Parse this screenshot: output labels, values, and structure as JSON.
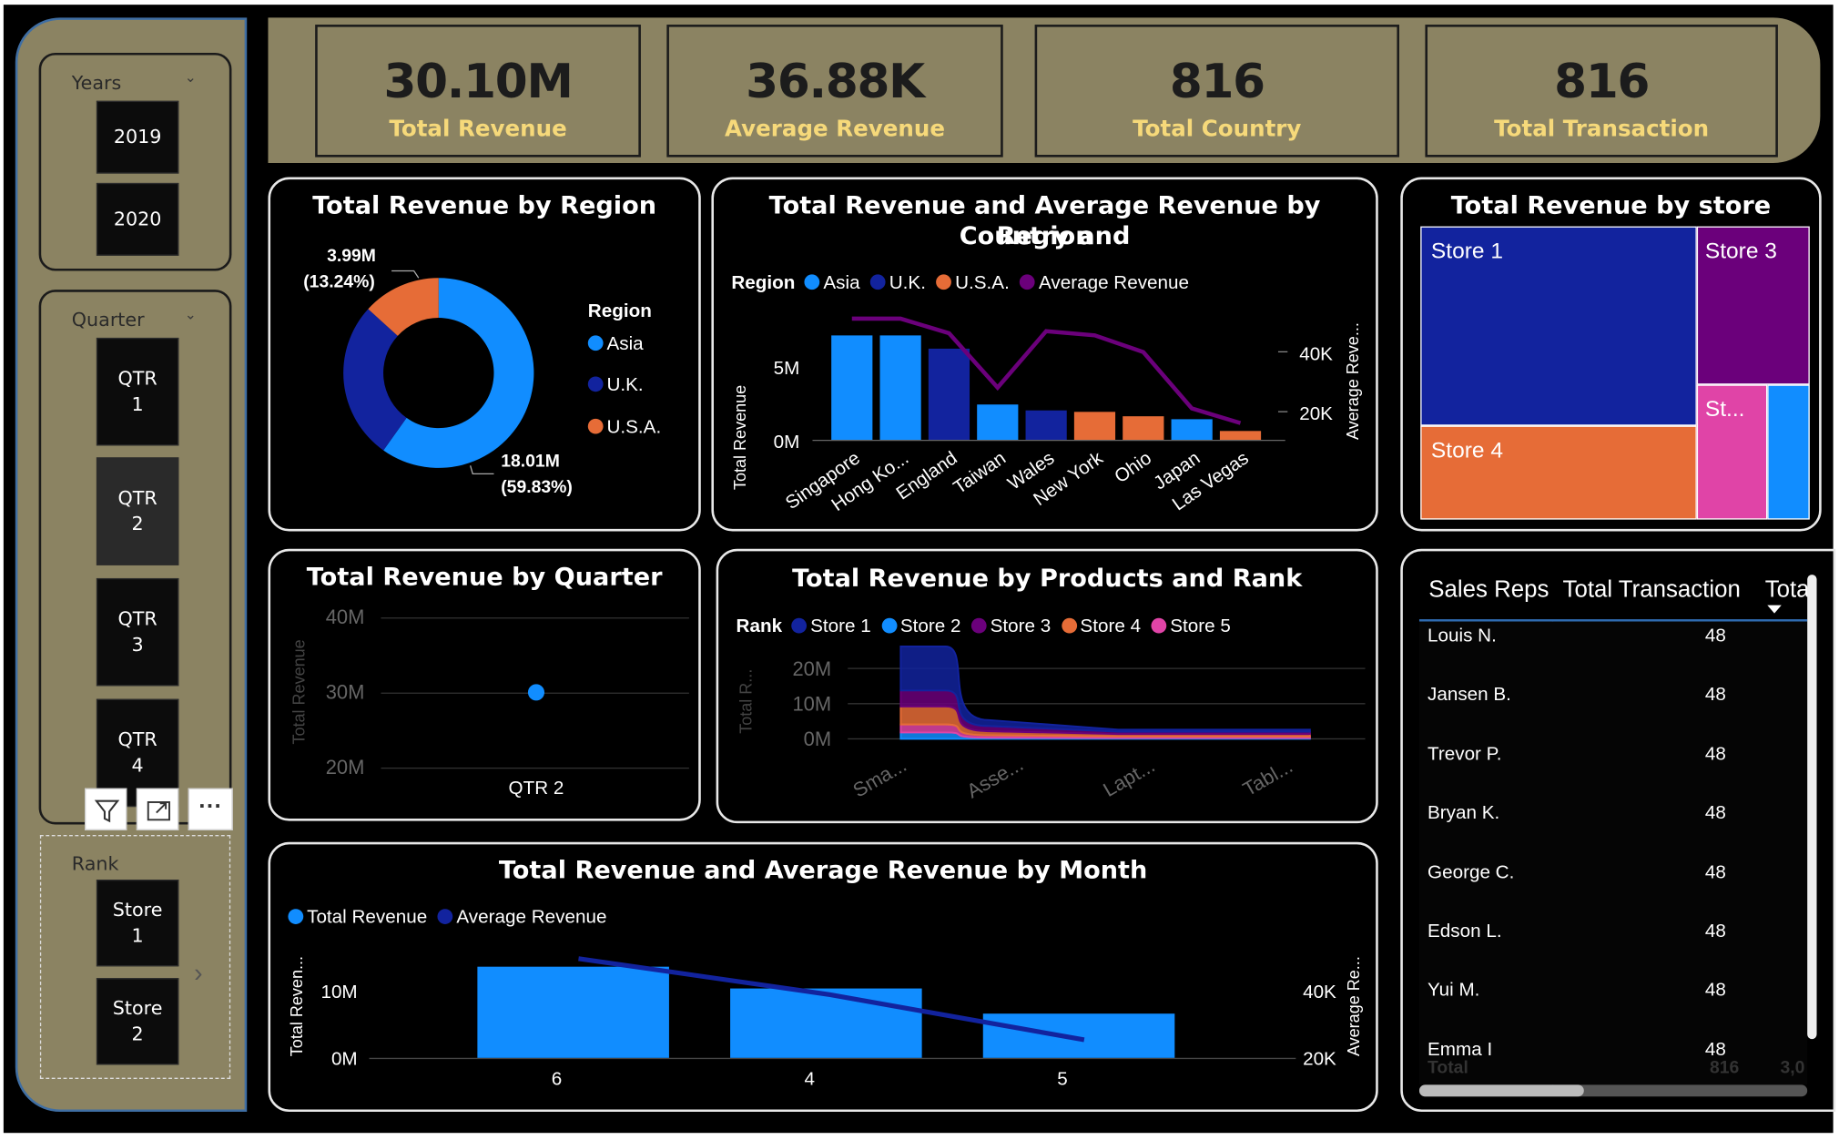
{
  "slicers": {
    "years": {
      "title": "Years",
      "items": [
        "2019",
        "2020"
      ]
    },
    "quarter": {
      "title": "Quarter",
      "items": [
        "QTR\n1",
        "QTR\n2",
        "QTR\n3",
        "QTR\n4"
      ],
      "selected": 1
    },
    "rank": {
      "title": "Rank",
      "items": [
        "Store\n1",
        "Store\n2"
      ]
    }
  },
  "visual_toolbar": [
    "filter-icon",
    "focus-mode-icon",
    "more-options-icon"
  ],
  "kpis": [
    {
      "value": "30.10M",
      "label": "Total Revenue"
    },
    {
      "value": "36.88K",
      "label": "Average Revenue"
    },
    {
      "value": "816",
      "label": "Total Country"
    },
    {
      "value": "816",
      "label": "Total Transaction"
    }
  ],
  "region_card": {
    "title": "Total Revenue by Region",
    "legend_title": "Region",
    "label_small": "3.99M",
    "label_small_pct": "(13.24%)",
    "label_large": "18.01M",
    "label_large_pct": "(59.83%)"
  },
  "country_card": {
    "title_line1": "Total Revenue and Average Revenue by Country and",
    "title_line2": "Region",
    "legend_title": "Region",
    "ylabel_left": "Total Revenue",
    "ylabel_right": "Average Reve...",
    "yticks_left": [
      "5M",
      "0M"
    ],
    "yticks_right": [
      "40K",
      "20K"
    ]
  },
  "store_card": {
    "title": "Total Revenue by store",
    "labels": [
      "Store 1",
      "Store 3",
      "Store 4",
      "St..."
    ]
  },
  "quarter_card": {
    "title": "Total Revenue by Quarter",
    "ylabel": "Total Revenue",
    "yticks": [
      "40M",
      "30M",
      "20M"
    ],
    "xlabel_tick": "QTR 2"
  },
  "products_card": {
    "title": "Total Revenue by Products and Rank",
    "legend_title": "Rank",
    "ylabel": "Total R...",
    "yticks": [
      "20M",
      "10M",
      "0M"
    ],
    "xticks": [
      "Sma...",
      "Asse...",
      "Lapt...",
      "Tabl..."
    ]
  },
  "month_card": {
    "title": "Total Revenue and Average Revenue by Month",
    "ylabel_left": "Total Reven...",
    "ylabel_right": "Average Re...",
    "yticks_left": [
      "10M",
      "0M"
    ],
    "yticks_right": [
      "40K",
      "20K"
    ]
  },
  "table": {
    "headers": [
      "Sales Reps",
      "Total Transaction",
      "Tota"
    ],
    "rows": [
      {
        "name": "Louis N.",
        "count": "48"
      },
      {
        "name": "Jansen B.",
        "count": "48"
      },
      {
        "name": "Trevor P.",
        "count": "48"
      },
      {
        "name": "Bryan K.",
        "count": "48"
      },
      {
        "name": "George C.",
        "count": "48"
      },
      {
        "name": "Edson L.",
        "count": "48"
      },
      {
        "name": "Yui M.",
        "count": "48"
      },
      {
        "name": "Emma I",
        "count": "48"
      }
    ],
    "total_label": "Total",
    "total_value": "816",
    "total_value2": "3,0"
  },
  "chart_data": [
    {
      "type": "pie",
      "title": "Total Revenue by Region",
      "legend_title": "Region",
      "legend": "right",
      "categories": [
        "Asia",
        "U.K.",
        "U.S.A."
      ],
      "values": [
        18.01,
        8.1,
        3.99
      ],
      "unit": "M",
      "colors": [
        "#118dff",
        "#12239e",
        "#e66c37"
      ]
    },
    {
      "type": "bar",
      "title": "Total Revenue and Average Revenue by Country and Region",
      "categories": [
        "Singapore",
        "Hong Ko...",
        "England",
        "Taiwan",
        "Wales",
        "New York",
        "Ohio",
        "Japan",
        "Las Vegas"
      ],
      "series": [
        {
          "name": "Asia",
          "color": "#118dff",
          "values": [
            7.1,
            7.1,
            null,
            2.4,
            null,
            null,
            null,
            1.4,
            null
          ]
        },
        {
          "name": "U.K.",
          "color": "#12239e",
          "values": [
            null,
            null,
            6.2,
            null,
            2.0,
            null,
            null,
            null,
            null
          ]
        },
        {
          "name": "U.S.A.",
          "color": "#e66c37",
          "values": [
            null,
            null,
            null,
            null,
            null,
            1.9,
            1.6,
            null,
            0.6
          ]
        },
        {
          "name": "Average Revenue",
          "color": "#6b007b",
          "type": "line",
          "axis": "right",
          "values": [
            44000,
            44000,
            40500,
            27500,
            41000,
            40000,
            36000,
            22500,
            19000
          ]
        }
      ],
      "ylabel": "Total Revenue",
      "ylabel_right": "Average Reve...",
      "ylim": [
        0,
        7.5
      ],
      "ylim_right": [
        15000,
        47000
      ]
    },
    {
      "type": "heatmap",
      "title": "Total Revenue by store",
      "categories": [
        "Store 1",
        "Store 3",
        "Store 4",
        "Store 5",
        "Store 2"
      ],
      "values": [
        11.0,
        4.0,
        6.0,
        2.0,
        1.6
      ],
      "colors": [
        "#12239e",
        "#6b007b",
        "#e66c37",
        "#e044a7",
        "#118dff"
      ]
    },
    {
      "type": "scatter",
      "title": "Total Revenue by Quarter",
      "categories": [
        "QTR 2"
      ],
      "values": [
        30.1
      ],
      "ylabel": "Total Revenue",
      "ylim": [
        20,
        40
      ],
      "unit": "M"
    },
    {
      "type": "area",
      "title": "Total Revenue by Products and Rank",
      "legend_title": "Rank",
      "categories": [
        "Sma...",
        "Asse...",
        "Lapt...",
        "Tabl..."
      ],
      "series": [
        {
          "name": "Store 1",
          "color": "#12239e",
          "values": [
            11.0,
            1.5,
            0.5,
            0.5
          ]
        },
        {
          "name": "Store 2",
          "color": "#118dff",
          "values": [
            1.6,
            0.3,
            0.2,
            0.2
          ]
        },
        {
          "name": "Store 3",
          "color": "#6b007b",
          "values": [
            4.0,
            1.3,
            0.6,
            0.6
          ]
        },
        {
          "name": "Store 4",
          "color": "#e66c37",
          "values": [
            4.5,
            1.0,
            0.6,
            0.6
          ]
        },
        {
          "name": "Store 5",
          "color": "#e044a7",
          "values": [
            2.0,
            0.6,
            0.4,
            0.4
          ]
        }
      ],
      "ylabel": "Total R...",
      "ylim": [
        0,
        22
      ]
    },
    {
      "type": "bar",
      "title": "Total Revenue and Average Revenue by Month",
      "categories": [
        "6",
        "4",
        "5"
      ],
      "series": [
        {
          "name": "Total Revenue",
          "color": "#118dff",
          "values": [
            13.4,
            10.2,
            6.5
          ]
        },
        {
          "name": "Average Revenue",
          "color": "#12239e",
          "type": "line",
          "axis": "right",
          "values": [
            42000,
            34000,
            24000
          ]
        }
      ],
      "ylabel": "Total Reven...",
      "ylabel_right": "Average Re...",
      "ylim": [
        0,
        15
      ],
      "ylim_right": [
        20000,
        46000
      ]
    }
  ]
}
